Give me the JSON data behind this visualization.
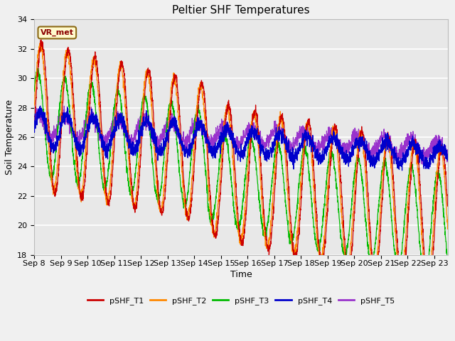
{
  "title": "Peltier SHF Temperatures",
  "xlabel": "Time",
  "ylabel": "Soil Temperature",
  "ylim": [
    18,
    34
  ],
  "xlim": [
    0,
    15.5
  ],
  "annotation": "VR_met",
  "annotation_color": "#8B0000",
  "annotation_bg": "#FFFACD",
  "annotation_border": "#8B6914",
  "colors": {
    "pSHF_T1": "#cc0000",
    "pSHF_T2": "#ff8800",
    "pSHF_T3": "#00bb00",
    "pSHF_T4": "#0000cc",
    "pSHF_T5": "#9933cc"
  },
  "background_color": "#e8e8e8",
  "fig_facecolor": "#f0f0f0",
  "tick_labels": [
    "Sep 8",
    "Sep 9",
    "Sep 10",
    "Sep 11",
    "Sep 12",
    "Sep 13",
    "Sep 14",
    "Sep 15",
    "Sep 16",
    "Sep 17",
    "Sep 18",
    "Sep 19",
    "Sep 20",
    "Sep 21",
    "Sep 22",
    "Sep 23"
  ],
  "yticks": [
    18,
    20,
    22,
    24,
    26,
    28,
    30,
    32,
    34
  ]
}
